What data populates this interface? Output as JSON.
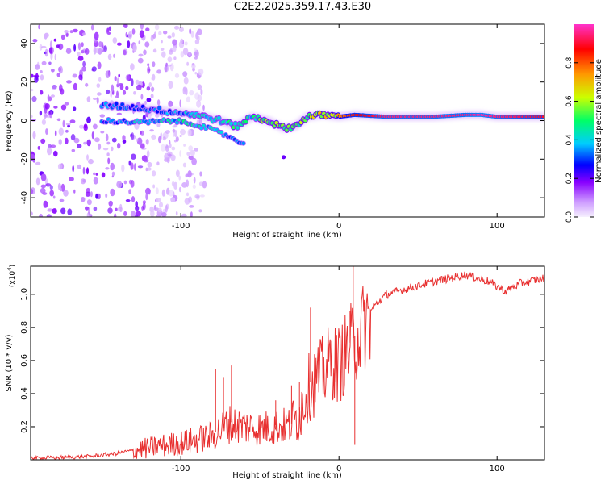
{
  "title": "C2E2.2025.359.17.43.E30",
  "chart_data": [
    {
      "type": "heatmap",
      "title": "C2E2.2025.359.17.43.E30",
      "xlabel": "Height of straight line (km)",
      "ylabel": "Frequency (Hz)",
      "xlim": [
        -195,
        130
      ],
      "ylim": [
        -50,
        50
      ],
      "xticks": [
        -100,
        0,
        100
      ],
      "yticks": [
        -40,
        -20,
        0,
        20,
        40
      ],
      "colorbar": {
        "label": "Normalized spectral amplitude",
        "range": [
          0,
          1
        ],
        "ticks": [
          0.0,
          0.2,
          0.4,
          0.6,
          0.8
        ],
        "colors": [
          "#f4eefe",
          "#cc99ff",
          "#8800ff",
          "#0000ff",
          "#00ccff",
          "#00ff66",
          "#ccff00",
          "#ff9900",
          "#ff0000",
          "#ff33cc"
        ]
      },
      "noise_region_x": [
        -195,
        -120
      ],
      "ridge": {
        "x": [
          -150,
          -130,
          -110,
          -90,
          -75,
          -65,
          -55,
          -45,
          -35,
          -28,
          -20,
          -10,
          0,
          10,
          30,
          60,
          80,
          90,
          100,
          130
        ],
        "y": [
          8,
          7,
          5,
          3,
          0,
          -3,
          2,
          0,
          -4,
          -3,
          2,
          3,
          2,
          3,
          2,
          2,
          3,
          3,
          2,
          2
        ],
        "amp": [
          0.35,
          0.3,
          0.35,
          0.4,
          0.45,
          0.5,
          0.45,
          0.6,
          0.55,
          0.55,
          0.6,
          0.7,
          0.75,
          0.85,
          0.95,
          0.95,
          0.95,
          0.98,
          0.95,
          0.9
        ]
      },
      "lower_ridge": {
        "x": [
          -150,
          -125,
          -105,
          -90,
          -80,
          -70,
          -60
        ],
        "y": [
          0,
          -1,
          0,
          -2,
          -5,
          -8,
          -12
        ],
        "amp": [
          0.3,
          0.4,
          0.4,
          0.45,
          0.4,
          0.35,
          0.3
        ]
      }
    },
    {
      "type": "line",
      "xlabel": "Height of straight line (km)",
      "ylabel": "SNR (10 * v/v)",
      "scale_label": "(x10",
      "scale_exponent": "4",
      "scale_suffix": ")",
      "xlim": [
        -195,
        130
      ],
      "ylim": [
        0,
        1.17
      ],
      "xticks": [
        -100,
        0,
        100
      ],
      "yticks": [
        0.2,
        0.4,
        0.6,
        0.8,
        1.0
      ],
      "ytick_labels": [
        "0.2",
        "0.4",
        "0.6",
        "0.8",
        "1.0"
      ],
      "color": "#e83030",
      "trend": {
        "x": [
          -195,
          -160,
          -140,
          -120,
          -100,
          -80,
          -70,
          -50,
          -30,
          -25,
          -20,
          -15,
          -10,
          -5,
          0,
          5,
          10,
          15,
          20,
          25,
          30,
          40,
          60,
          80,
          95,
          105,
          115,
          130
        ],
        "y": [
          0.01,
          0.02,
          0.04,
          0.08,
          0.11,
          0.15,
          0.23,
          0.2,
          0.22,
          0.3,
          0.45,
          0.5,
          0.55,
          0.62,
          0.6,
          0.68,
          0.75,
          0.82,
          0.9,
          0.96,
          1.0,
          1.03,
          1.08,
          1.12,
          1.08,
          1.02,
          1.07,
          1.1
        ]
      },
      "spikes": {
        "x": [
          -78,
          -73,
          -68,
          -40,
          -30,
          -25,
          -18,
          7,
          9,
          10
        ],
        "y": [
          0.55,
          0.5,
          0.57,
          0.36,
          0.45,
          0.47,
          0.92,
          0.9,
          1.17,
          0.09
        ]
      }
    }
  ]
}
